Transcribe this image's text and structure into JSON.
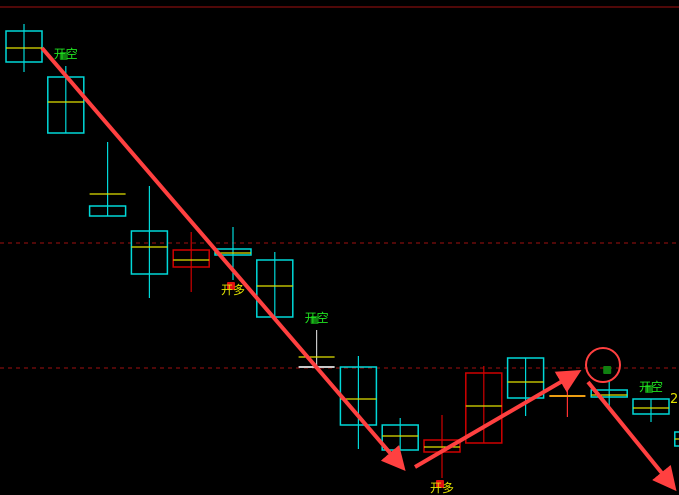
{
  "chart_data": {
    "type": "candlestick",
    "title": "",
    "xlabel": "",
    "ylabel": "",
    "grid": false,
    "colors": {
      "up": "#00d8d8",
      "down": "#d00000",
      "midline": "#e0e000",
      "arrow": "#ff4040",
      "open_short": "#20e020",
      "open_long": "#e0e000",
      "ref_line": "#a01010"
    },
    "ylim": [
      0,
      488
    ],
    "ref_lines": [
      {
        "value": 488,
        "style": "solid"
      },
      {
        "value": 252,
        "style": "dashed"
      },
      {
        "value": 127,
        "style": "dashed"
      }
    ],
    "candles": [
      {
        "open": 433,
        "close": 464,
        "high": 471,
        "low": 423,
        "mid": 447,
        "color": "up"
      },
      {
        "open": 362,
        "close": 418,
        "high": 429,
        "low": 362,
        "mid": 393,
        "color": "up"
      },
      {
        "open": 279,
        "close": 289,
        "high": 353,
        "low": 279,
        "mid": 301,
        "color": "up"
      },
      {
        "open": 221,
        "close": 264,
        "high": 309,
        "low": 197,
        "mid": 248,
        "color": "up"
      },
      {
        "open": 245,
        "close": 228,
        "high": 263,
        "low": 203,
        "mid": 235,
        "color": "down"
      },
      {
        "open": 240,
        "close": 246,
        "high": 268,
        "low": 215,
        "mid": 242,
        "color": "up"
      },
      {
        "open": 178,
        "close": 235,
        "high": 243,
        "low": 178,
        "mid": 209,
        "color": "up"
      },
      {
        "open": 128,
        "close": 128,
        "high": 165,
        "low": 128,
        "mid": 138,
        "color": "flat"
      },
      {
        "open": 70,
        "close": 128,
        "high": 139,
        "low": 46,
        "mid": 96,
        "color": "up"
      },
      {
        "open": 45,
        "close": 70,
        "high": 77,
        "low": 45,
        "mid": 59,
        "color": "up"
      },
      {
        "open": 55,
        "close": 43,
        "high": 80,
        "low": 17,
        "mid": 48,
        "color": "down"
      },
      {
        "open": 122,
        "close": 52,
        "high": 129,
        "low": 52,
        "mid": 89,
        "color": "down"
      },
      {
        "open": 97,
        "close": 137,
        "high": 137,
        "low": 79,
        "mid": 113,
        "color": "up"
      },
      {
        "open": 99,
        "close": 99,
        "high": 110,
        "low": 78,
        "mid": 99,
        "color": "flat-red"
      },
      {
        "open": 98,
        "close": 105,
        "high": 115,
        "low": 87,
        "mid": 100,
        "color": "up"
      },
      {
        "open": 81,
        "close": 96,
        "high": 96,
        "low": 73,
        "mid": 87,
        "color": "up"
      },
      {
        "open": 49,
        "close": 63,
        "high": 63,
        "low": 49,
        "mid": 56,
        "color": "up"
      }
    ],
    "signals": [
      {
        "candle": 1,
        "label": "开空",
        "type": "open_short"
      },
      {
        "candle": 5,
        "label": "开多",
        "type": "open_long"
      },
      {
        "candle": 7,
        "label": "开空",
        "type": "open_short"
      },
      {
        "candle": 10,
        "label": "开多",
        "type": "open_long"
      },
      {
        "candle": 14,
        "label": "",
        "type": "open_short_marker"
      },
      {
        "candle": 15,
        "label": "开空",
        "type": "open_short"
      }
    ],
    "edge_label": "2"
  }
}
